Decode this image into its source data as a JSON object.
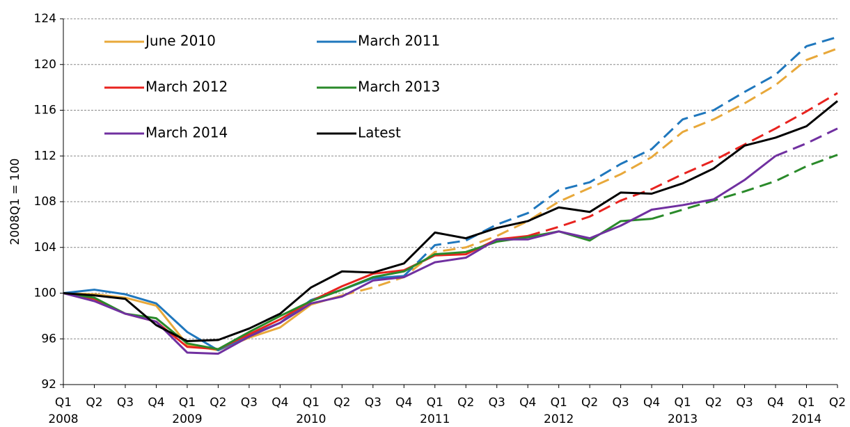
{
  "chart_data": {
    "type": "line",
    "y_label": "2008Q1 = 100",
    "categories": [
      "Q1",
      "Q2",
      "Q3",
      "Q4",
      "Q1",
      "Q2",
      "Q3",
      "Q4",
      "Q1",
      "Q2",
      "Q3",
      "Q4",
      "Q1",
      "Q2",
      "Q3",
      "Q4",
      "Q1",
      "Q2",
      "Q3",
      "Q4",
      "Q1",
      "Q2",
      "Q3",
      "Q4",
      "Q1",
      "Q2"
    ],
    "years": [
      "2008",
      "2009",
      "2010",
      "2011",
      "2012",
      "2013",
      "2014"
    ],
    "ylim": [
      92,
      124
    ],
    "yticks": [
      92,
      96,
      100,
      104,
      108,
      112,
      116,
      120,
      124
    ],
    "grid": true,
    "legend": "top-left",
    "series": [
      {
        "name": "June 2010",
        "color": "#E8A83A",
        "forecast_start": 9,
        "values": [
          100,
          99.9,
          99.6,
          98.9,
          95.5,
          95.0,
          96.1,
          97.0,
          99.0,
          99.8,
          100.5,
          101.4,
          103.6,
          104.0,
          105.0,
          106.3,
          108.0,
          109.2,
          110.4,
          111.9,
          114.1,
          115.2,
          116.6,
          118.2,
          120.4,
          121.4
        ]
      },
      {
        "name": "March 2011",
        "color": "#1F77BD",
        "forecast_start": 11,
        "values": [
          100,
          100.3,
          99.9,
          99.1,
          96.6,
          95.0,
          96.3,
          97.4,
          99.4,
          100.3,
          101.3,
          101.5,
          104.2,
          104.6,
          106.0,
          107.0,
          109.0,
          109.7,
          111.3,
          112.6,
          115.2,
          116.0,
          117.6,
          119.1,
          121.6,
          122.4
        ]
      },
      {
        "name": "March 2012",
        "color": "#E8231F",
        "forecast_start": 15,
        "values": [
          100,
          99.5,
          98.2,
          97.5,
          95.3,
          95.1,
          96.4,
          97.7,
          99.3,
          100.6,
          101.7,
          102.0,
          103.3,
          103.4,
          104.7,
          105.0,
          105.8,
          106.7,
          108.1,
          109.1,
          110.4,
          111.6,
          113.0,
          114.4,
          115.9,
          117.5
        ]
      },
      {
        "name": "March 2013",
        "color": "#2A8A2A",
        "forecast_start": 19,
        "values": [
          100,
          99.6,
          98.2,
          97.8,
          95.6,
          95.1,
          96.6,
          98.0,
          99.3,
          100.3,
          101.4,
          101.9,
          103.4,
          103.6,
          104.5,
          104.9,
          105.4,
          104.6,
          106.3,
          106.5,
          107.3,
          108.1,
          108.9,
          109.8,
          111.1,
          112.1
        ]
      },
      {
        "name": "March 2014",
        "color": "#7030A0",
        "forecast_start": 23,
        "values": [
          100,
          99.3,
          98.2,
          97.5,
          94.8,
          94.7,
          96.2,
          97.4,
          99.1,
          99.7,
          101.1,
          101.4,
          102.7,
          103.1,
          104.7,
          104.7,
          105.4,
          104.8,
          105.9,
          107.3,
          107.7,
          108.2,
          109.9,
          112.0,
          113.1,
          114.4
        ]
      },
      {
        "name": "Latest",
        "color": "#000000",
        "values": [
          100,
          99.8,
          99.5,
          97.2,
          95.8,
          95.9,
          96.9,
          98.2,
          100.5,
          101.9,
          101.8,
          102.6,
          105.3,
          104.8,
          105.7,
          106.3,
          107.5,
          107.1,
          108.8,
          108.7,
          109.6,
          110.9,
          112.9,
          113.6,
          114.6,
          116.8
        ]
      }
    ]
  }
}
